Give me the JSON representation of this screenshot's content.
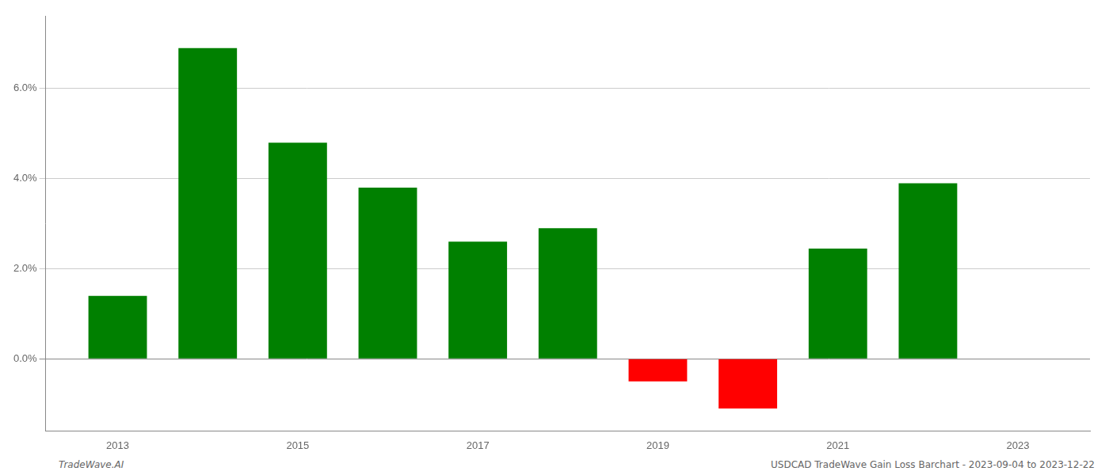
{
  "chart_data": {
    "type": "bar",
    "x": [
      2013,
      2014,
      2015,
      2016,
      2017,
      2018,
      2019,
      2020,
      2021,
      2022,
      2023
    ],
    "values": [
      0.014,
      0.069,
      0.048,
      0.038,
      0.026,
      0.029,
      -0.005,
      -0.011,
      0.0245,
      0.039,
      null
    ],
    "colors": [
      "#008000",
      "#008000",
      "#008000",
      "#008000",
      "#008000",
      "#008000",
      "#ff0000",
      "#ff0000",
      "#008000",
      "#008000",
      null
    ],
    "xlim": [
      2012.2,
      2023.8
    ],
    "xticks": [
      2013,
      2015,
      2017,
      2019,
      2021,
      2023
    ],
    "ylim": [
      -0.016,
      0.076
    ],
    "yticks": [
      {
        "value": 0.0,
        "label": "0.0%"
      },
      {
        "value": 0.02,
        "label": "2.0%"
      },
      {
        "value": 0.04,
        "label": "4.0%"
      },
      {
        "value": 0.06,
        "label": "6.0%"
      }
    ],
    "grid": true,
    "footer_left": "TradeWave.AI",
    "footer_right": "USDCAD TradeWave Gain Loss Barchart - 2023-09-04 to 2023-12-22"
  }
}
